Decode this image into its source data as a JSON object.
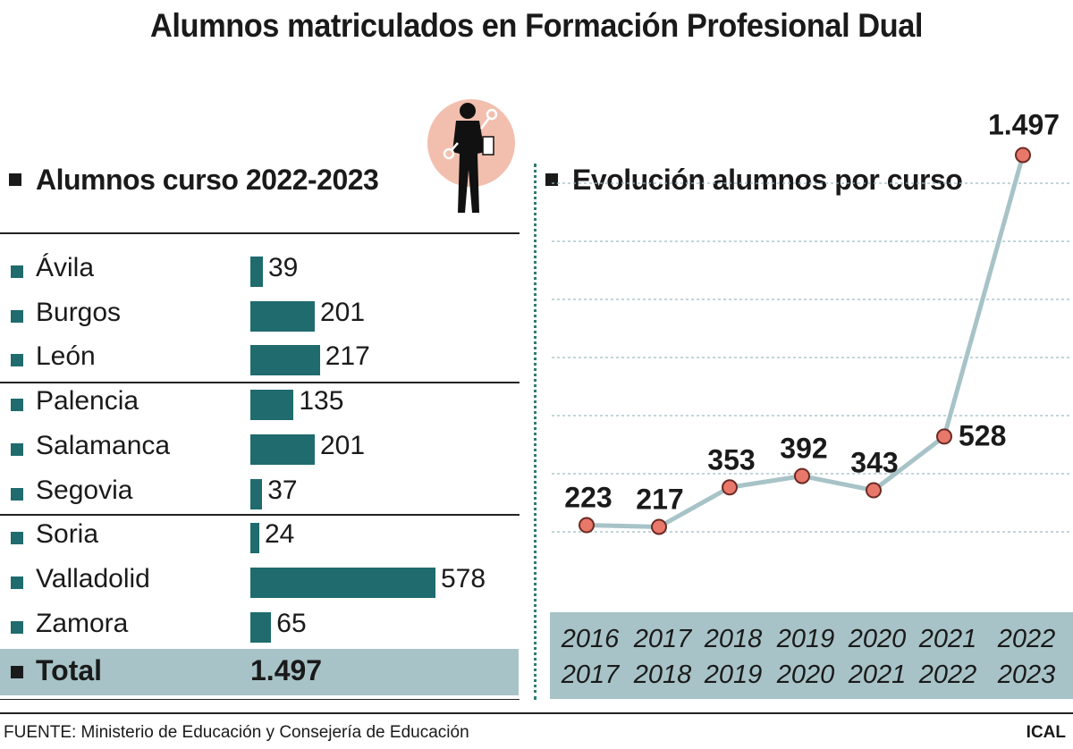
{
  "title": "Alumnos matriculados en Formación Profesional Dual",
  "left_heading": "Alumnos curso 2022-2023",
  "right_heading": "Evolución alumnos por curso",
  "provinces": [
    {
      "name": "Ávila",
      "value": 39,
      "label": "39"
    },
    {
      "name": "Burgos",
      "value": 201,
      "label": "201"
    },
    {
      "name": "León",
      "value": 217,
      "label": "217"
    },
    {
      "name": "Palencia",
      "value": 135,
      "label": "135"
    },
    {
      "name": "Salamanca",
      "value": 201,
      "label": "201"
    },
    {
      "name": "Segovia",
      "value": 37,
      "label": "37"
    },
    {
      "name": "Soria",
      "value": 24,
      "label": "24"
    },
    {
      "name": "Valladolid",
      "value": 578,
      "label": "578"
    },
    {
      "name": "Zamora",
      "value": 65,
      "label": "65"
    }
  ],
  "total": {
    "label": "Total",
    "value": "1.497"
  },
  "source": "FUENTE: Ministerio de Educación y Consejería de Educación",
  "credit": "ICAL",
  "colors": {
    "bar": "#1f6b6e",
    "line": "#a7c3c7",
    "point": "#e8786a",
    "band": "#a7c3c7"
  },
  "icon": "worker-with-wrench-icon",
  "chart_data": [
    {
      "type": "bar",
      "title": "Alumnos curso 2022-2023",
      "categories": [
        "Ávila",
        "Burgos",
        "León",
        "Palencia",
        "Salamanca",
        "Segovia",
        "Soria",
        "Valladolid",
        "Zamora"
      ],
      "values": [
        39,
        201,
        217,
        135,
        201,
        37,
        24,
        578,
        65
      ],
      "orientation": "horizontal"
    },
    {
      "type": "line",
      "title": "Evolución alumnos por curso",
      "categories": [
        "2016 2017",
        "2017 2018",
        "2018 2019",
        "2019 2020",
        "2020 2021",
        "2021 2022",
        "2022 2023"
      ],
      "category_lines": [
        [
          "2016",
          "2017"
        ],
        [
          "2017",
          "2018"
        ],
        [
          "2018",
          "2019"
        ],
        [
          "2019",
          "2020"
        ],
        [
          "2020",
          "2021"
        ],
        [
          "2021",
          "2022"
        ],
        [
          "2022",
          "2023"
        ]
      ],
      "values": [
        223,
        217,
        353,
        392,
        343,
        528,
        1497
      ],
      "value_labels": [
        "223",
        "217",
        "353",
        "392",
        "343",
        "528",
        "1.497"
      ],
      "ylim": [
        0,
        1600
      ],
      "grid": true
    }
  ]
}
